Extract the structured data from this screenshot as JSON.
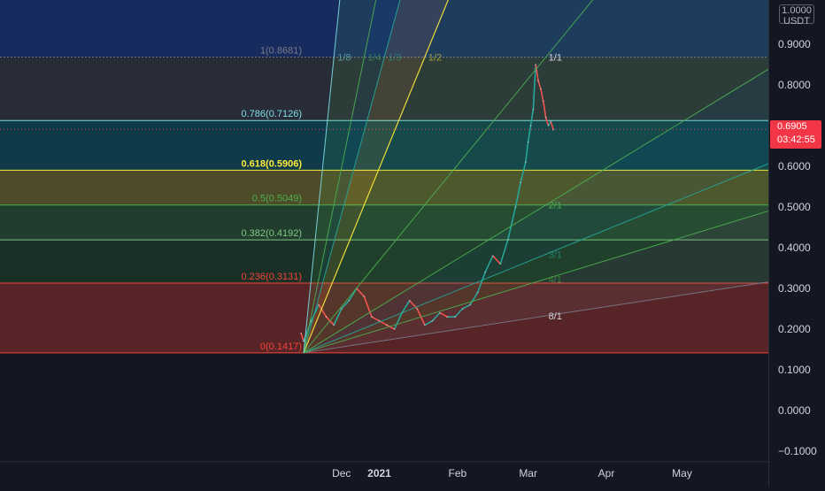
{
  "chart_data": {
    "type": "line",
    "description_series": "Price candles (approximate close)",
    "price_scale": {
      "currency_top": "1.0000",
      "currency": "USDT",
      "ticks": [
        "0.9000",
        "0.8000",
        "0.7000",
        "0.6000",
        "0.5000",
        "0.4000",
        "0.3000",
        "0.2000",
        "0.1000",
        "0.0000",
        "−0.1000"
      ],
      "ylim": [
        -0.12,
        1.0
      ]
    },
    "time_axis": {
      "labels": [
        {
          "text": "Dec",
          "t": 15
        },
        {
          "text": "2021",
          "t": 30,
          "bold": true
        },
        {
          "text": "Feb",
          "t": 61
        },
        {
          "text": "Mar",
          "t": 89
        },
        {
          "text": "Apr",
          "t": 120
        },
        {
          "text": "May",
          "t": 150
        }
      ]
    },
    "last_price": {
      "value": "0.6905",
      "countdown": "03:42:55",
      "level": 0.6905,
      "color": "#f23645"
    },
    "fib_retracement": [
      {
        "label": "1(0.8681)",
        "level": 0.8681,
        "color": "#787b86"
      },
      {
        "label": "0.786(0.7126)",
        "level": 0.7126,
        "color": "#80deea"
      },
      {
        "label": "0.618(0.5906)",
        "level": 0.5906,
        "color": "#ffeb3b"
      },
      {
        "label": "0.5(0.5049)",
        "level": 0.5049,
        "color": "#4caf50"
      },
      {
        "label": "0.382(0.4192)",
        "level": 0.4192,
        "color": "#81c784"
      },
      {
        "label": "0.236(0.3131)",
        "level": 0.3131,
        "color": "#f44336"
      },
      {
        "label": "0(0.1417)",
        "level": 0.1417,
        "color": "#f44336"
      }
    ],
    "fib_fill_colors": {
      "above_top": "#2962ff",
      "z_1_786": "#787b86",
      "z_786_618": "#00bcd4",
      "z_618_5": "#ffeb3b",
      "z_5_382": "#4caf50",
      "z_382_236": "#2e7d32",
      "z_236_0": "#f44336"
    },
    "gann_fan": {
      "origin": {
        "t": 0,
        "price": 0.1417
      },
      "unit_point": {
        "t": 96,
        "price": 0.8681
      },
      "rays": [
        {
          "label": "8/1",
          "ratio": 8,
          "color": "#787b86"
        },
        {
          "label": "4/1",
          "ratio": 4,
          "color": "#4caf50"
        },
        {
          "label": "3/1",
          "ratio": 3,
          "color": "#26a69a"
        },
        {
          "label": "2/1",
          "ratio": 2,
          "color": "#4caf50"
        },
        {
          "label": "1/1",
          "ratio": 1,
          "color": "#4caf50"
        },
        {
          "label": "1/2",
          "ratio": 0.5,
          "color": "#ffeb3b"
        },
        {
          "label": "1/3",
          "ratio": 0.3333,
          "color": "#26a69a"
        },
        {
          "label": "1/4",
          "ratio": 0.25,
          "color": "#4caf50"
        },
        {
          "label": "1/8",
          "ratio": 0.125,
          "color": "#80deea"
        }
      ]
    },
    "price_series": {
      "name": "",
      "t": [
        -1,
        0,
        3,
        6,
        9,
        12,
        15,
        18,
        21,
        24,
        27,
        30,
        33,
        36,
        39,
        42,
        45,
        48,
        51,
        54,
        57,
        60,
        63,
        66,
        69,
        72,
        75,
        78,
        81,
        84,
        86,
        88,
        89,
        90,
        91,
        92,
        93,
        94,
        95,
        96,
        97,
        98,
        99
      ],
      "close": [
        0.19,
        0.17,
        0.22,
        0.26,
        0.23,
        0.21,
        0.25,
        0.27,
        0.3,
        0.28,
        0.23,
        0.22,
        0.21,
        0.2,
        0.24,
        0.27,
        0.25,
        0.21,
        0.22,
        0.24,
        0.23,
        0.23,
        0.25,
        0.26,
        0.29,
        0.34,
        0.38,
        0.36,
        0.42,
        0.5,
        0.56,
        0.61,
        0.66,
        0.7,
        0.74,
        0.85,
        0.81,
        0.79,
        0.76,
        0.72,
        0.7,
        0.71,
        0.69
      ]
    }
  }
}
